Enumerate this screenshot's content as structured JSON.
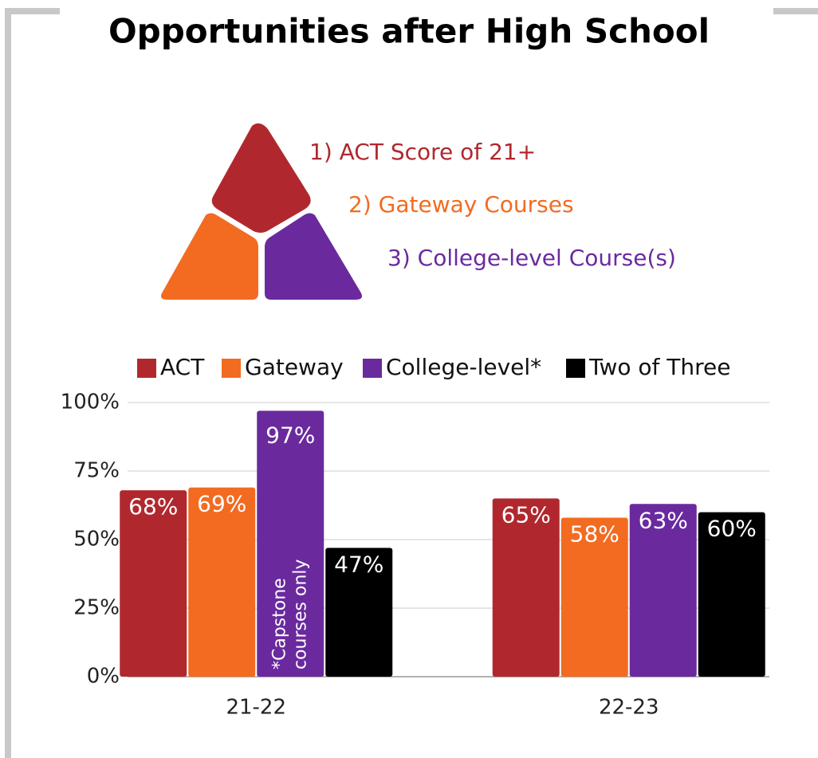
{
  "chart_data": {
    "type": "bar",
    "title": "Opportunities after High School",
    "criteria": [
      {
        "label": "1) ACT Score of 21+",
        "color": "#b0282e"
      },
      {
        "label": "2) Gateway Courses",
        "color": "#f26b21"
      },
      {
        "label": "3) College-level Course(s)",
        "color": "#6a2a9e"
      }
    ],
    "categories": [
      "21-22",
      "22-23"
    ],
    "series": [
      {
        "name": "ACT",
        "color": "#b0282e",
        "values": [
          68,
          65
        ],
        "value_labels": [
          "68%",
          "65%"
        ]
      },
      {
        "name": "Gateway",
        "color": "#f26b21",
        "values": [
          69,
          58
        ],
        "value_labels": [
          "69%",
          "58%"
        ]
      },
      {
        "name": "College-level*",
        "color": "#6a2a9e",
        "values": [
          97,
          63
        ],
        "value_labels": [
          "97%",
          "63%"
        ]
      },
      {
        "name": "Two of Three",
        "color": "#000000",
        "values": [
          47,
          60
        ],
        "value_labels": [
          "47%",
          "60%"
        ]
      }
    ],
    "annotation": [
      "*Capstone",
      "courses only"
    ],
    "ylim": [
      0,
      100
    ],
    "yticks": [
      {
        "value": 0,
        "label": "0%"
      },
      {
        "value": 25,
        "label": "25%"
      },
      {
        "value": 50,
        "label": "50%"
      },
      {
        "value": 75,
        "label": "75%"
      },
      {
        "value": 100,
        "label": "100%"
      }
    ],
    "grid": true
  }
}
